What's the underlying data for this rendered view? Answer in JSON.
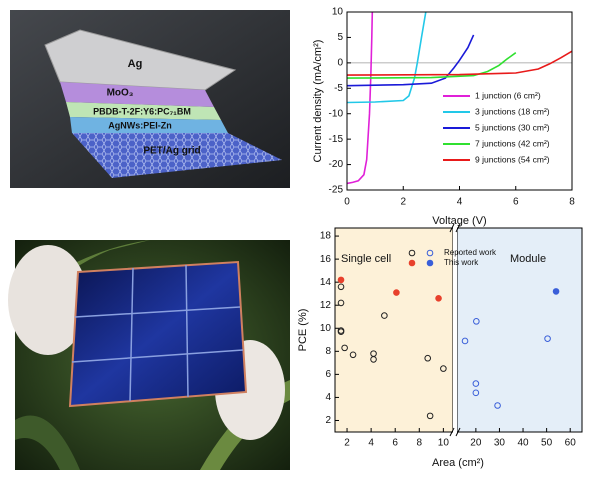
{
  "schematic": {
    "layers": [
      "Ag",
      "MoO₃",
      "PBDB-T-2F:Y6:PC₇₁BM",
      "AgNWs:PEI-Zn",
      "PET/Ag grid"
    ]
  },
  "chart_data": [
    {
      "type": "line",
      "xlabel": "Voltage (V)",
      "ylabel": "Current density (mA/cm²)",
      "xlim": [
        0,
        8
      ],
      "xticks": [
        0,
        2,
        4,
        6,
        8
      ],
      "ylim": [
        -25,
        10
      ],
      "yticks": [
        -25,
        -20,
        -15,
        -10,
        -5,
        0,
        5,
        10
      ],
      "series": [
        {
          "name": "1 junction (6 cm²)",
          "color": "#e020d8",
          "x": [
            0,
            0.2,
            0.4,
            0.6,
            0.7,
            0.8,
            0.85,
            0.88,
            0.9
          ],
          "values": [
            -23.7,
            -23.5,
            -23.2,
            -22,
            -19,
            -10,
            -2,
            5,
            10
          ]
        },
        {
          "name": "3 junctions (18 cm²)",
          "color": "#22c8e8",
          "x": [
            0,
            1,
            2,
            2.2,
            2.4,
            2.5,
            2.65,
            2.8
          ],
          "values": [
            -7.8,
            -7.7,
            -7.4,
            -6.5,
            -3,
            0,
            5,
            10
          ]
        },
        {
          "name": "5 junctions (30 cm²)",
          "color": "#1a1ad8",
          "x": [
            0,
            2,
            3,
            3.5,
            3.8,
            4,
            4.3,
            4.5
          ],
          "values": [
            -4.5,
            -4.3,
            -4,
            -3,
            -1,
            0.5,
            3,
            5.5
          ]
        },
        {
          "name": "7 junctions (42 cm²)",
          "color": "#30e030",
          "x": [
            0,
            3,
            4.5,
            5,
            5.4,
            5.7,
            6
          ],
          "values": [
            -3,
            -2.9,
            -2.5,
            -1.7,
            -0.5,
            0.8,
            2
          ]
        },
        {
          "name": "9 junctions (54 cm²)",
          "color": "#e81a1a",
          "x": [
            0,
            4,
            6,
            6.8,
            7.2,
            7.6,
            8
          ],
          "values": [
            -2.4,
            -2.3,
            -2,
            -1.2,
            -0.2,
            1,
            2.3
          ]
        }
      ]
    },
    {
      "type": "scatter",
      "xlabel": "Area (cm²)",
      "ylabel": "PCE (%)",
      "ylim": [
        1,
        18.7
      ],
      "yticks": [
        2,
        4,
        6,
        8,
        10,
        12,
        14,
        16,
        18
      ],
      "segments": [
        {
          "label": "Single cell",
          "background": "#fdf1d8",
          "xlim": [
            1,
            10.8
          ],
          "xticks": [
            2,
            4,
            6,
            8,
            10
          ]
        },
        {
          "label": "Module",
          "background": "#e4eef8",
          "xlim": [
            12,
            65
          ],
          "xticks": [
            20,
            30,
            40,
            50,
            60
          ]
        }
      ],
      "series": [
        {
          "name": "Reported work",
          "filled": false,
          "colors": [
            "#222222",
            "#3a5fd9"
          ],
          "x": [
            1.5,
            1.5,
            1.5,
            1.5,
            1.8,
            2.5,
            4.2,
            4.2,
            5.1,
            8.7,
            8.9,
            10,
            15.4,
            20.2,
            20,
            20,
            29.2,
            50.4
          ],
          "values": [
            13.6,
            12.2,
            9.8,
            9.7,
            8.3,
            7.7,
            7.8,
            7.3,
            11.1,
            7.4,
            2.4,
            6.5,
            8.9,
            10.6,
            5.2,
            4.4,
            3.3,
            9.1
          ]
        },
        {
          "name": "This work",
          "filled": true,
          "colors": [
            "#e8412c",
            "#3a5fd9"
          ],
          "x": [
            1.5,
            6.1,
            9.6,
            54
          ],
          "values": [
            14.2,
            13.1,
            12.6,
            13.2
          ]
        }
      ]
    }
  ]
}
